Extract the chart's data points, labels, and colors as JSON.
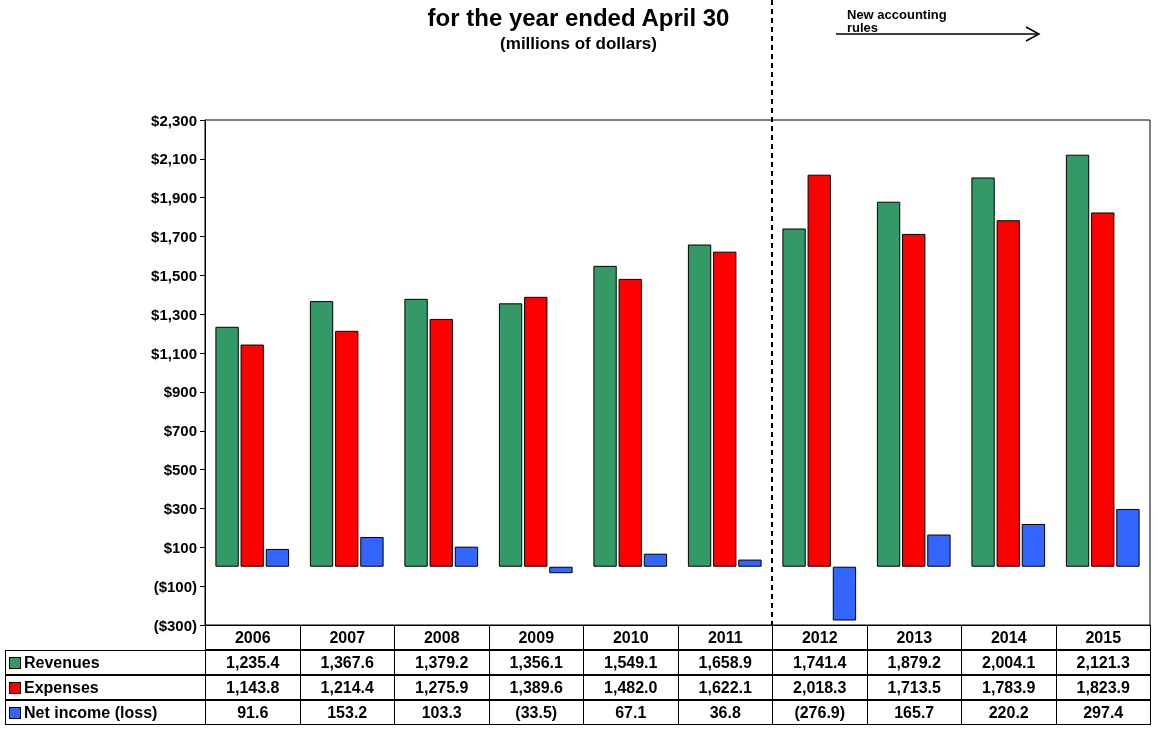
{
  "chart_data": {
    "type": "bar",
    "title": "for the year ended April 30",
    "subtitle": "(millions of dollars)",
    "categories": [
      "2006",
      "2007",
      "2008",
      "2009",
      "2010",
      "2011",
      "2012",
      "2013",
      "2014",
      "2015"
    ],
    "series": [
      {
        "name": "Revenues",
        "color": "#339966",
        "values": [
          1235.4,
          1367.6,
          1379.2,
          1356.1,
          1549.1,
          1658.9,
          1741.4,
          1879.2,
          2004.1,
          2121.3
        ],
        "value_labels": [
          "1,235.4",
          "1,367.6",
          "1,379.2",
          "1,356.1",
          "1,549.1",
          "1,658.9",
          "1,741.4",
          "1,879.2",
          "2,004.1",
          "2,121.3"
        ]
      },
      {
        "name": "Expenses",
        "color": "#ff0000",
        "values": [
          1143.8,
          1214.4,
          1275.9,
          1389.6,
          1482.0,
          1622.1,
          2018.3,
          1713.5,
          1783.9,
          1823.9
        ],
        "value_labels": [
          "1,143.8",
          "1,214.4",
          "1,275.9",
          "1,389.6",
          "1,482.0",
          "1,622.1",
          "2,018.3",
          "1,713.5",
          "1,783.9",
          "1,823.9"
        ]
      },
      {
        "name": "Net income (loss)",
        "color": "#3366ff",
        "values": [
          91.6,
          153.2,
          103.3,
          -33.5,
          67.1,
          36.8,
          -276.9,
          165.7,
          220.2,
          297.4
        ],
        "value_labels": [
          "91.6",
          "153.2",
          "103.3",
          "(33.5)",
          "67.1",
          "36.8",
          "(276.9)",
          "165.7",
          "220.2",
          "297.4"
        ]
      }
    ],
    "ylim": [
      -300,
      2300
    ],
    "yticks": [
      {
        "value": -300,
        "label": "($300)"
      },
      {
        "value": -100,
        "label": "($100)"
      },
      {
        "value": 100,
        "label": "$100"
      },
      {
        "value": 300,
        "label": "$300"
      },
      {
        "value": 500,
        "label": "$500"
      },
      {
        "value": 700,
        "label": "$700"
      },
      {
        "value": 900,
        "label": "$900"
      },
      {
        "value": 1100,
        "label": "$1,100"
      },
      {
        "value": 1300,
        "label": "$1,300"
      },
      {
        "value": 1500,
        "label": "$1,500"
      },
      {
        "value": 1700,
        "label": "$1,700"
      },
      {
        "value": 1900,
        "label": "$1,900"
      },
      {
        "value": 2100,
        "label": "$2,100"
      },
      {
        "value": 2300,
        "label": "$2,300"
      }
    ],
    "annotations": [
      "New accounting rules"
    ],
    "legend": "bottom left",
    "data_labels": true
  }
}
